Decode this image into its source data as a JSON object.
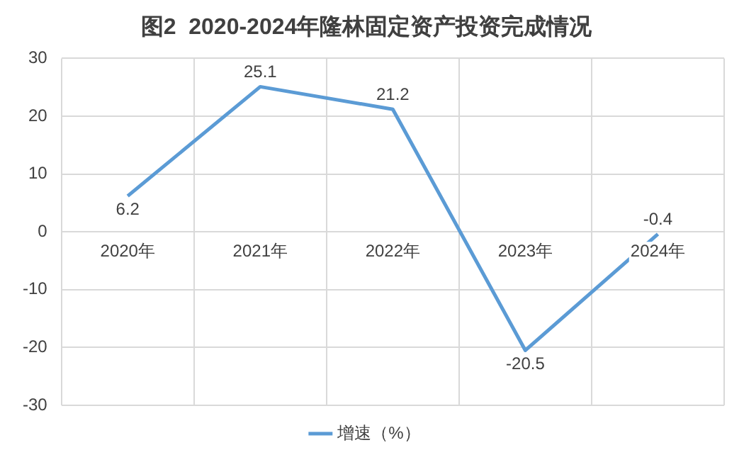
{
  "chart_data": {
    "type": "line",
    "title": "图2  2020-2024年隆林固定资产投资完成情况",
    "categories": [
      "2020年",
      "2021年",
      "2022年",
      "2023年",
      "2024年"
    ],
    "series": [
      {
        "name": "增速（%）",
        "color": "#5b9bd5",
        "values": [
          6.2,
          25.1,
          21.2,
          -20.5,
          -0.4
        ]
      }
    ],
    "ylim": [
      -30,
      30
    ],
    "yticks": [
      -30,
      -20,
      -10,
      0,
      10,
      20,
      30
    ],
    "grid": true,
    "legend": "bottom",
    "data_labels": true,
    "marker": "none",
    "line_style": "solid"
  }
}
